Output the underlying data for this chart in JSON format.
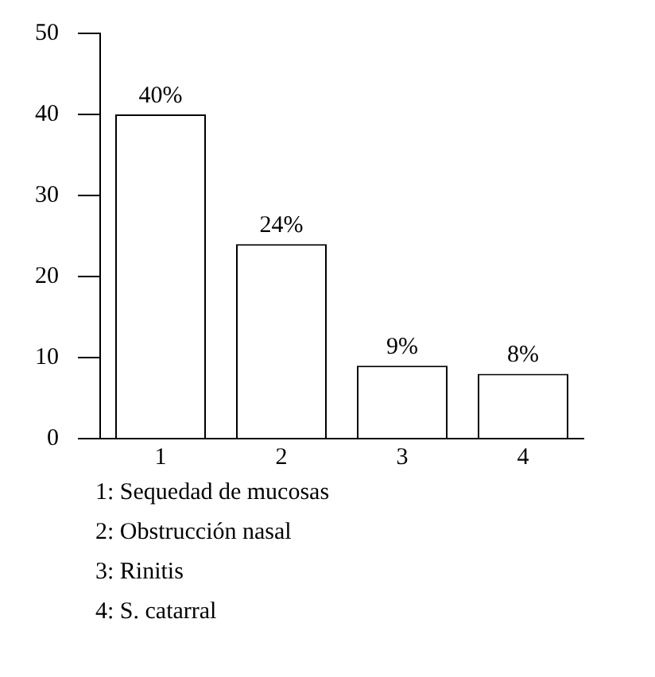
{
  "chart_data": {
    "type": "bar",
    "categories": [
      "1",
      "2",
      "3",
      "4"
    ],
    "series": [
      {
        "color": "#ffffff",
        "values": [
          40,
          24,
          9,
          8
        ],
        "value_labels": [
          "40%",
          "24%",
          "9%",
          "8%"
        ]
      }
    ],
    "ylim": [
      0,
      50
    ],
    "yticks": [
      0,
      10,
      20,
      30,
      40,
      50
    ],
    "grid": false,
    "legend": false,
    "annotations": [
      "1: Sequedad de mucosas",
      "2: Obstrucción nasal",
      "3: Rinitis",
      "4: S. catarral"
    ]
  }
}
